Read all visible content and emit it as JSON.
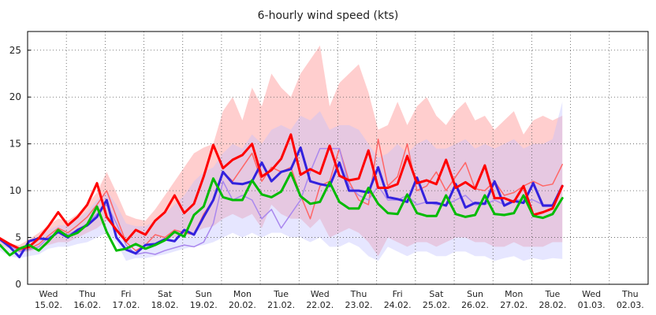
{
  "chart_data": {
    "type": "line",
    "title": "6-hourly wind speed (kts)",
    "xlabel": "",
    "ylabel": "",
    "ylim": [
      0,
      27
    ],
    "yticks": [
      0,
      5,
      10,
      15,
      20,
      25
    ],
    "grid": true,
    "legend": "none",
    "x_day_labels": [
      {
        "day": "Wed",
        "date": "15.02."
      },
      {
        "day": "Thu",
        "date": "16.02."
      },
      {
        "day": "Fri",
        "date": "17.02."
      },
      {
        "day": "Sat",
        "date": "18.02."
      },
      {
        "day": "Sun",
        "date": "19.02."
      },
      {
        "day": "Mon",
        "date": "20.02."
      },
      {
        "day": "Tue",
        "date": "21.02."
      },
      {
        "day": "Wed",
        "date": "22.02."
      },
      {
        "day": "Thu",
        "date": "23.02."
      },
      {
        "day": "Fri",
        "date": "24.02."
      },
      {
        "day": "Sat",
        "date": "25.02."
      },
      {
        "day": "Sun",
        "date": "26.02."
      },
      {
        "day": "Mon",
        "date": "27.02."
      },
      {
        "day": "Tue",
        "date": "28.02."
      },
      {
        "day": "Wed",
        "date": "01.03."
      },
      {
        "day": "Thu",
        "date": "02.03."
      }
    ],
    "bands": [
      {
        "color": "#ffb3b3",
        "opacity": 0.65,
        "upper": [
          5.8,
          5.2,
          4.9,
          4.3,
          4.2,
          4.8,
          5.5,
          6.3,
          7.0,
          6.8,
          7.5,
          8.6,
          9.8,
          12.0,
          9.8,
          7.4,
          7.0,
          6.8,
          8.0,
          9.5,
          11.0,
          12.5,
          14.0,
          14.6,
          15.0,
          18.5,
          20.0,
          17.5,
          21.0,
          19.0,
          22.5,
          21.0,
          20.0,
          22.5,
          24.0,
          25.5,
          19.0,
          21.5,
          22.5,
          23.5,
          20.5,
          16.5,
          17.0,
          19.5,
          17.0,
          19.0,
          20.0,
          18.0,
          17.0,
          18.5,
          19.5,
          17.5,
          18.0,
          16.5,
          17.5,
          18.5,
          16.0,
          17.5,
          18.0,
          17.5,
          18.0
        ],
        "lower": [
          5.0,
          4.5,
          4.2,
          3.8,
          3.4,
          3.5,
          3.8,
          4.2,
          4.5,
          4.5,
          5.0,
          5.5,
          6.0,
          6.8,
          6.0,
          4.5,
          4.0,
          4.0,
          4.5,
          4.8,
          5.0,
          5.2,
          5.5,
          6.0,
          6.2,
          7.0,
          7.5,
          7.0,
          7.5,
          6.0,
          8.5,
          7.5,
          7.0,
          7.0,
          6.0,
          7.0,
          5.0,
          5.5,
          6.0,
          5.5,
          4.5,
          3.0,
          5.0,
          4.5,
          4.0,
          4.5,
          4.5,
          4.0,
          4.5,
          5.0,
          5.0,
          4.5,
          4.5,
          4.0,
          4.0,
          4.5,
          4.0,
          4.0,
          4.0,
          4.5,
          4.5
        ]
      },
      {
        "color": "#c0c0ff",
        "opacity": 0.4,
        "upper": [
          5.4,
          5.0,
          4.6,
          4.0,
          3.8,
          4.4,
          5.0,
          5.8,
          6.3,
          6.3,
          7.0,
          7.8,
          9.0,
          10.0,
          8.5,
          6.5,
          6.2,
          6.2,
          6.8,
          7.5,
          8.5,
          9.5,
          11.0,
          12.0,
          12.5,
          14.0,
          15.0,
          14.5,
          16.0,
          15.0,
          16.5,
          17.0,
          16.5,
          18.0,
          17.5,
          18.5,
          16.5,
          17.0,
          17.0,
          16.5,
          15.0,
          13.5,
          14.0,
          15.0,
          14.0,
          15.0,
          15.5,
          14.5,
          14.5,
          15.0,
          15.5,
          14.5,
          15.0,
          14.5,
          15.0,
          15.5,
          14.5,
          15.0,
          15.0,
          15.5,
          19.5
        ],
        "lower": [
          4.8,
          4.0,
          3.6,
          3.0,
          2.8,
          3.0,
          3.2,
          3.8,
          4.0,
          4.0,
          4.3,
          4.5,
          5.0,
          5.5,
          4.5,
          2.5,
          2.8,
          2.8,
          3.0,
          3.2,
          3.5,
          3.8,
          4.0,
          4.2,
          4.5,
          5.0,
          5.5,
          5.0,
          5.5,
          5.0,
          5.5,
          5.5,
          5.0,
          5.0,
          4.5,
          5.0,
          4.0,
          4.0,
          4.5,
          4.0,
          3.0,
          2.5,
          4.0,
          3.5,
          3.0,
          3.5,
          3.5,
          3.0,
          3.0,
          3.5,
          3.5,
          3.0,
          3.0,
          2.5,
          2.8,
          3.0,
          2.5,
          2.8,
          2.6,
          2.8,
          2.7
        ]
      }
    ],
    "series": [
      {
        "color": "#ff6666",
        "width": 1.5,
        "values": [
          5.2,
          5.6,
          4.8,
          4.3,
          3.6,
          3.8,
          4.3,
          5.2,
          6.0,
          5.5,
          6.3,
          7.2,
          8.5,
          10.0,
          7.2,
          4.5,
          3.6,
          4.2,
          5.3,
          5.0,
          5.8,
          5.5,
          5.3,
          7.5,
          9.0,
          12.0,
          11.0,
          12.5,
          14.0,
          11.0,
          12.5,
          12.0,
          12.5,
          9.5,
          7.0,
          10.5,
          11.0,
          14.5,
          11.0,
          9.0,
          8.5,
          15.5,
          10.5,
          11.5,
          15.0,
          10.0,
          10.5,
          12.0,
          10.0,
          11.5,
          13.0,
          10.2,
          10.0,
          11.0,
          9.5,
          9.8,
          10.5,
          11.0,
          10.5,
          10.7,
          12.8
        ]
      },
      {
        "color": "#aa88ee",
        "width": 1.5,
        "values": [
          5.1,
          5.4,
          4.7,
          4.2,
          3.5,
          3.7,
          4.0,
          5.0,
          5.5,
          5.3,
          5.8,
          6.5,
          7.5,
          8.5,
          6.5,
          4.2,
          3.2,
          3.4,
          3.2,
          3.6,
          3.9,
          4.2,
          4.0,
          4.5,
          6.5,
          11.0,
          9.0,
          9.5,
          9.0,
          7.0,
          8.0,
          6.0,
          7.5,
          9.0,
          12.0,
          14.5,
          14.5,
          14.5,
          10.5,
          9.5,
          9.0,
          10.5,
          9.0,
          9.0,
          9.5,
          8.5,
          8.8,
          8.5,
          8.5,
          9.0,
          9.5,
          8.5,
          8.5,
          9.0,
          8.5,
          9.0,
          9.0,
          9.0,
          8.5,
          8.5,
          10.5
        ]
      },
      {
        "color": "#3322dd",
        "width": 3,
        "values": [
          5.0,
          5.5,
          4.8,
          4.0,
          2.9,
          4.6,
          4.9,
          4.8,
          5.6,
          5.0,
          5.8,
          6.3,
          7.2,
          9.0,
          5.0,
          3.7,
          3.3,
          4.2,
          4.3,
          4.8,
          4.6,
          5.8,
          5.3,
          7.2,
          9.0,
          12.0,
          10.8,
          10.7,
          11.0,
          13.0,
          11.0,
          12.0,
          12.3,
          14.6,
          11.0,
          10.7,
          10.5,
          13.0,
          10.0,
          10.0,
          9.8,
          12.5,
          9.3,
          9.1,
          8.8,
          11.4,
          8.7,
          8.7,
          8.4,
          10.7,
          8.2,
          8.7,
          8.6,
          11.0,
          8.4,
          8.9,
          8.7,
          10.8,
          8.4,
          8.4,
          10.5
        ]
      },
      {
        "color": "#ff0000",
        "width": 3,
        "values": [
          5.1,
          5.8,
          4.9,
          4.3,
          3.8,
          4.0,
          4.9,
          6.2,
          7.7,
          6.3,
          7.2,
          8.5,
          10.8,
          7.2,
          5.8,
          4.6,
          5.8,
          5.3,
          6.8,
          7.7,
          9.5,
          7.6,
          8.6,
          11.5,
          14.9,
          12.4,
          13.3,
          13.8,
          15.0,
          11.5,
          12.2,
          13.4,
          16.0,
          11.7,
          12.3,
          11.8,
          14.8,
          11.6,
          11.1,
          11.3,
          14.3,
          10.3,
          10.3,
          10.7,
          13.7,
          10.8,
          11.1,
          10.7,
          13.3,
          10.3,
          10.9,
          10.2,
          12.7,
          9.2,
          9.2,
          8.8,
          10.5,
          7.4,
          7.7,
          8.1,
          10.5
        ]
      },
      {
        "color": "#00bb00",
        "width": 3,
        "values": [
          5.1,
          2.7,
          4.2,
          3.1,
          3.8,
          4.2,
          3.6,
          4.6,
          5.8,
          5.1,
          5.5,
          6.4,
          8.3,
          5.6,
          3.6,
          3.8,
          4.3,
          3.8,
          4.2,
          4.7,
          5.6,
          5.1,
          7.4,
          8.3,
          11.3,
          9.3,
          9.0,
          9.0,
          11.1,
          9.6,
          9.3,
          9.9,
          11.9,
          9.4,
          8.6,
          8.8,
          10.9,
          8.8,
          8.1,
          8.1,
          10.3,
          8.6,
          7.6,
          7.5,
          9.6,
          7.6,
          7.3,
          7.3,
          9.5,
          7.5,
          7.2,
          7.4,
          9.5,
          7.5,
          7.4,
          7.6,
          9.5,
          7.3,
          7.1,
          7.5,
          9.2
        ]
      }
    ]
  }
}
